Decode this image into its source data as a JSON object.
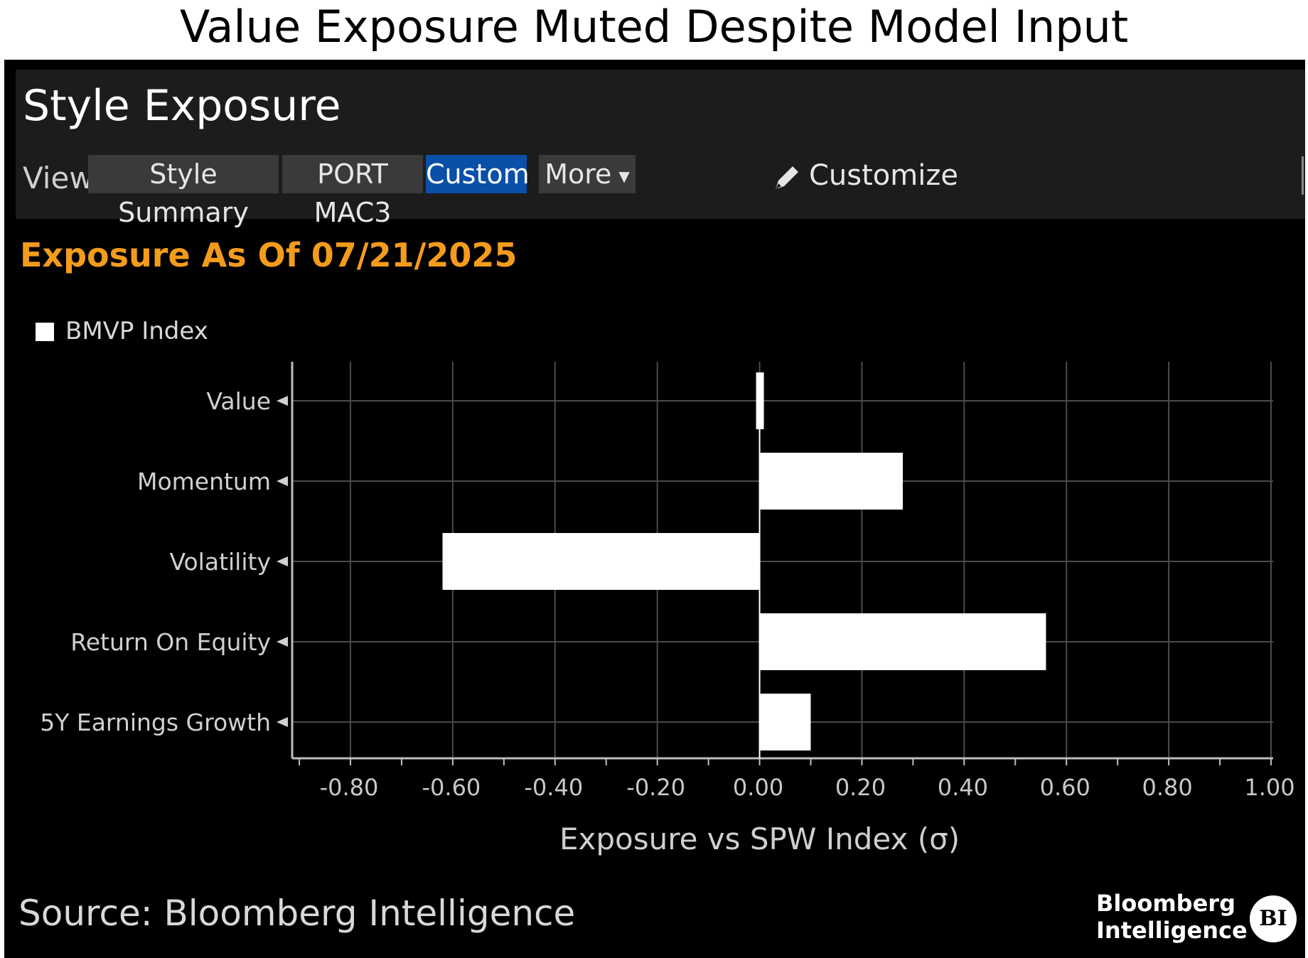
{
  "headline": "Value Exposure Muted Despite Model Input",
  "panel": {
    "title": "Style Exposure",
    "view_label": "View",
    "tabs": [
      {
        "label": "Style Summary",
        "active": false
      },
      {
        "label": "PORT MAC3",
        "active": false
      },
      {
        "label": "Custom",
        "active": true
      }
    ],
    "more_label": "More",
    "customize_label": "Customize",
    "as_of": "Exposure As Of 07/21/2025"
  },
  "colors": {
    "background": "#000000",
    "toolbar": "#1c1c1c",
    "active_tab": "#0a4fa8",
    "as_of_text": "#f39c1c",
    "bar": "#ffffff",
    "grid": "#4a4a4a"
  },
  "chart_data": {
    "type": "bar",
    "orientation": "horizontal",
    "categories": [
      "Value",
      "Momentum",
      "Volatility",
      "Return On Equity",
      "5Y Earnings Growth"
    ],
    "series": [
      {
        "name": "BMVP Index",
        "values": [
          0.01,
          0.28,
          -0.62,
          0.56,
          0.1
        ]
      }
    ],
    "xlabel": "Exposure vs SPW Index (σ)",
    "xlim": [
      -1.0,
      1.0
    ],
    "xticks": [
      -0.8,
      -0.6,
      -0.4,
      -0.2,
      0.0,
      0.2,
      0.4,
      0.6,
      0.8,
      1.0
    ],
    "xtick_labels": [
      "-0.80",
      "-0.60",
      "-0.40",
      "-0.20",
      "0.00",
      "0.20",
      "0.40",
      "0.60",
      "0.80",
      "1.00"
    ],
    "grid": true,
    "legend": "top-left"
  },
  "footer": {
    "source": "Source: Bloomberg Intelligence",
    "brand_line1": "Bloomberg",
    "brand_line2": "Intelligence",
    "badge": "BI"
  }
}
